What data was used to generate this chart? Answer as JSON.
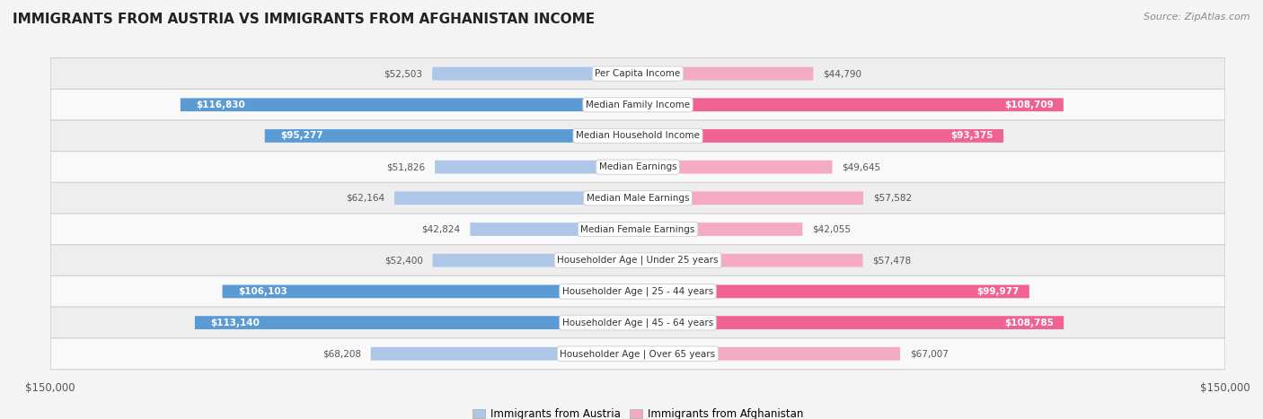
{
  "title": "IMMIGRANTS FROM AUSTRIA VS IMMIGRANTS FROM AFGHANISTAN INCOME",
  "source": "Source: ZipAtlas.com",
  "categories": [
    "Per Capita Income",
    "Median Family Income",
    "Median Household Income",
    "Median Earnings",
    "Median Male Earnings",
    "Median Female Earnings",
    "Householder Age | Under 25 years",
    "Householder Age | 25 - 44 years",
    "Householder Age | 45 - 64 years",
    "Householder Age | Over 65 years"
  ],
  "austria_values": [
    52503,
    116830,
    95277,
    51826,
    62164,
    42824,
    52400,
    106103,
    113140,
    68208
  ],
  "afghanistan_values": [
    44790,
    108709,
    93375,
    49645,
    57582,
    42055,
    57478,
    99977,
    108785,
    67007
  ],
  "austria_color_light": "#aec6e8",
  "austria_color_dark": "#5b9bd5",
  "afghanistan_color_light": "#f4aac5",
  "afghanistan_color_dark": "#f06292",
  "max_value": 150000,
  "legend_austria": "Immigrants from Austria",
  "legend_afghanistan": "Immigrants from Afghanistan",
  "row_bg_even": "#eeeeee",
  "row_bg_odd": "#f9f9f9",
  "fig_bg": "#f5f5f5",
  "threshold": 80000,
  "title_fontsize": 11,
  "source_fontsize": 8,
  "label_fontsize": 7.5,
  "value_fontsize": 7.5,
  "tick_fontsize": 8.5
}
